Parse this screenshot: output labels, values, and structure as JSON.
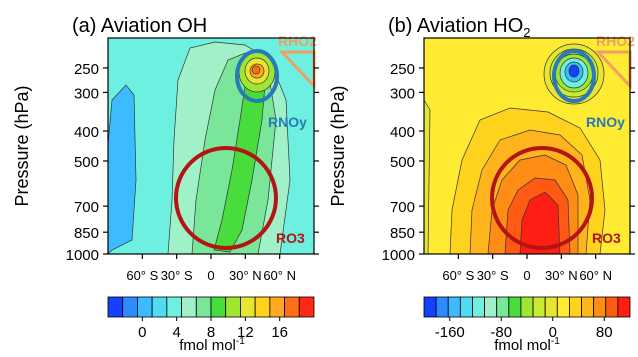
{
  "chart_data": [
    {
      "type": "contour",
      "panel_title": "(a) Aviation OH",
      "ylabel": "Pressure (hPa)",
      "x_ticks": [
        "60° S",
        "30° S",
        "0",
        "30° N",
        "60° N"
      ],
      "y_ticks": [
        "250",
        "300",
        "400",
        "500",
        "700",
        "850",
        "1000"
      ],
      "y_values": [
        250,
        300,
        400,
        500,
        700,
        850,
        1000
      ],
      "ylim": [
        1000,
        200
      ],
      "y_scale": "log",
      "colorbar": {
        "tick_labels": [
          "0",
          "4",
          "8",
          "12",
          "16"
        ],
        "tick_values": [
          0,
          4,
          8,
          12,
          16
        ],
        "range": [
          -4,
          20
        ],
        "units": "fmol mol",
        "units_exponent": "-1",
        "colors": [
          "#1540ff",
          "#2c8cff",
          "#3cbcff",
          "#4fdcf0",
          "#6ef0e0",
          "#a0f0c8",
          "#7ae69a",
          "#48dc3c",
          "#9ee632",
          "#e6e632",
          "#ffd21e",
          "#ffaa1e",
          "#ff6e14",
          "#ff2814"
        ]
      },
      "regions": [
        {
          "label": "RHO2",
          "color": "#f0a060"
        },
        {
          "label": "RNOy",
          "color": "#2a7ab8"
        },
        {
          "label": "RO3",
          "color": "#b41414"
        }
      ]
    },
    {
      "type": "contour",
      "panel_title": "(b) Aviation HO",
      "panel_title_subscript": "2",
      "ylabel": "Pressure (hPa)",
      "x_ticks": [
        "60° S",
        "30° S",
        "0",
        "30° N",
        "60° N"
      ],
      "y_ticks": [
        "250",
        "300",
        "400",
        "500",
        "700",
        "850",
        "1000"
      ],
      "y_values": [
        250,
        300,
        400,
        500,
        700,
        850,
        1000
      ],
      "ylim": [
        1000,
        200
      ],
      "y_scale": "log",
      "colorbar": {
        "tick_labels": [
          "-160",
          "-80",
          "0",
          "80"
        ],
        "tick_values": [
          -160,
          -80,
          0,
          80
        ],
        "range": [
          -200,
          120
        ],
        "units": "fmol mol",
        "units_exponent": "-1",
        "colors": [
          "#1540ff",
          "#2c8cff",
          "#3cbcff",
          "#4fdcf0",
          "#6ef0e0",
          "#a0f0c8",
          "#7ae69a",
          "#48dc3c",
          "#9ee632",
          "#c8eb32",
          "#e6e632",
          "#ffeb32",
          "#ffd21e",
          "#ffb41e",
          "#ff8c14",
          "#ff5a14",
          "#ff1e14"
        ]
      },
      "regions": [
        {
          "label": "RHO2",
          "color": "#f0a060"
        },
        {
          "label": "RNOy",
          "color": "#2a7ab8"
        },
        {
          "label": "RO3",
          "color": "#b41414"
        }
      ]
    }
  ]
}
